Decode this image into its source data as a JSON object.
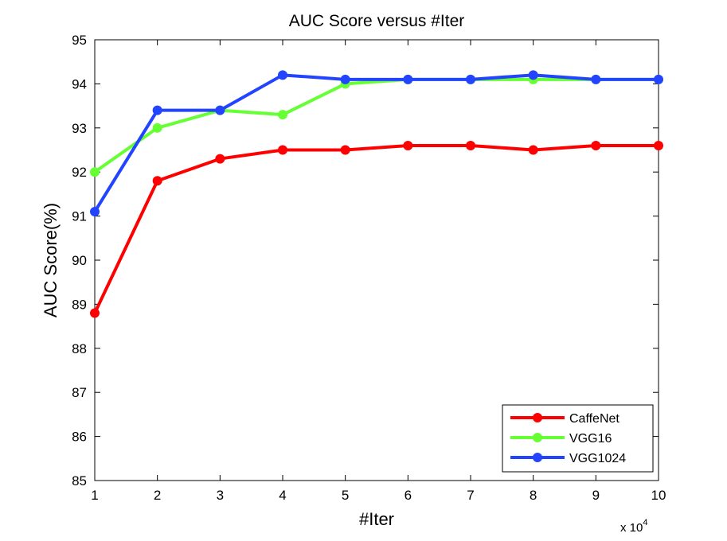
{
  "chart_data": {
    "type": "line",
    "title": "AUC Score versus #Iter",
    "xlabel": "#Iter",
    "ylabel": "AUC Score(%)",
    "x_multiplier_label": {
      "base": "x 10",
      "exponent": "4"
    },
    "x": [
      1,
      2,
      3,
      4,
      5,
      6,
      7,
      8,
      9,
      10
    ],
    "x_tick_labels": [
      "1",
      "2",
      "3",
      "4",
      "5",
      "6",
      "7",
      "8",
      "9",
      "10"
    ],
    "y_tick_labels": [
      "85",
      "86",
      "87",
      "88",
      "89",
      "90",
      "91",
      "92",
      "93",
      "94",
      "95"
    ],
    "xlim": [
      1,
      10
    ],
    "ylim": [
      85,
      95
    ],
    "grid": false,
    "legend_position": "bottom-right",
    "series": [
      {
        "name": "CaffeNet",
        "color": "#ff0000",
        "values": [
          88.8,
          91.8,
          92.3,
          92.5,
          92.5,
          92.6,
          92.6,
          92.5,
          92.6,
          92.6
        ]
      },
      {
        "name": "VGG16",
        "color": "#66ff33",
        "values": [
          92.0,
          93.0,
          93.4,
          93.3,
          94.0,
          94.1,
          94.1,
          94.1,
          94.1,
          94.1
        ]
      },
      {
        "name": "VGG1024",
        "color": "#2244ff",
        "values": [
          91.1,
          93.4,
          93.4,
          94.2,
          94.1,
          94.1,
          94.1,
          94.2,
          94.1,
          94.1
        ]
      }
    ]
  }
}
